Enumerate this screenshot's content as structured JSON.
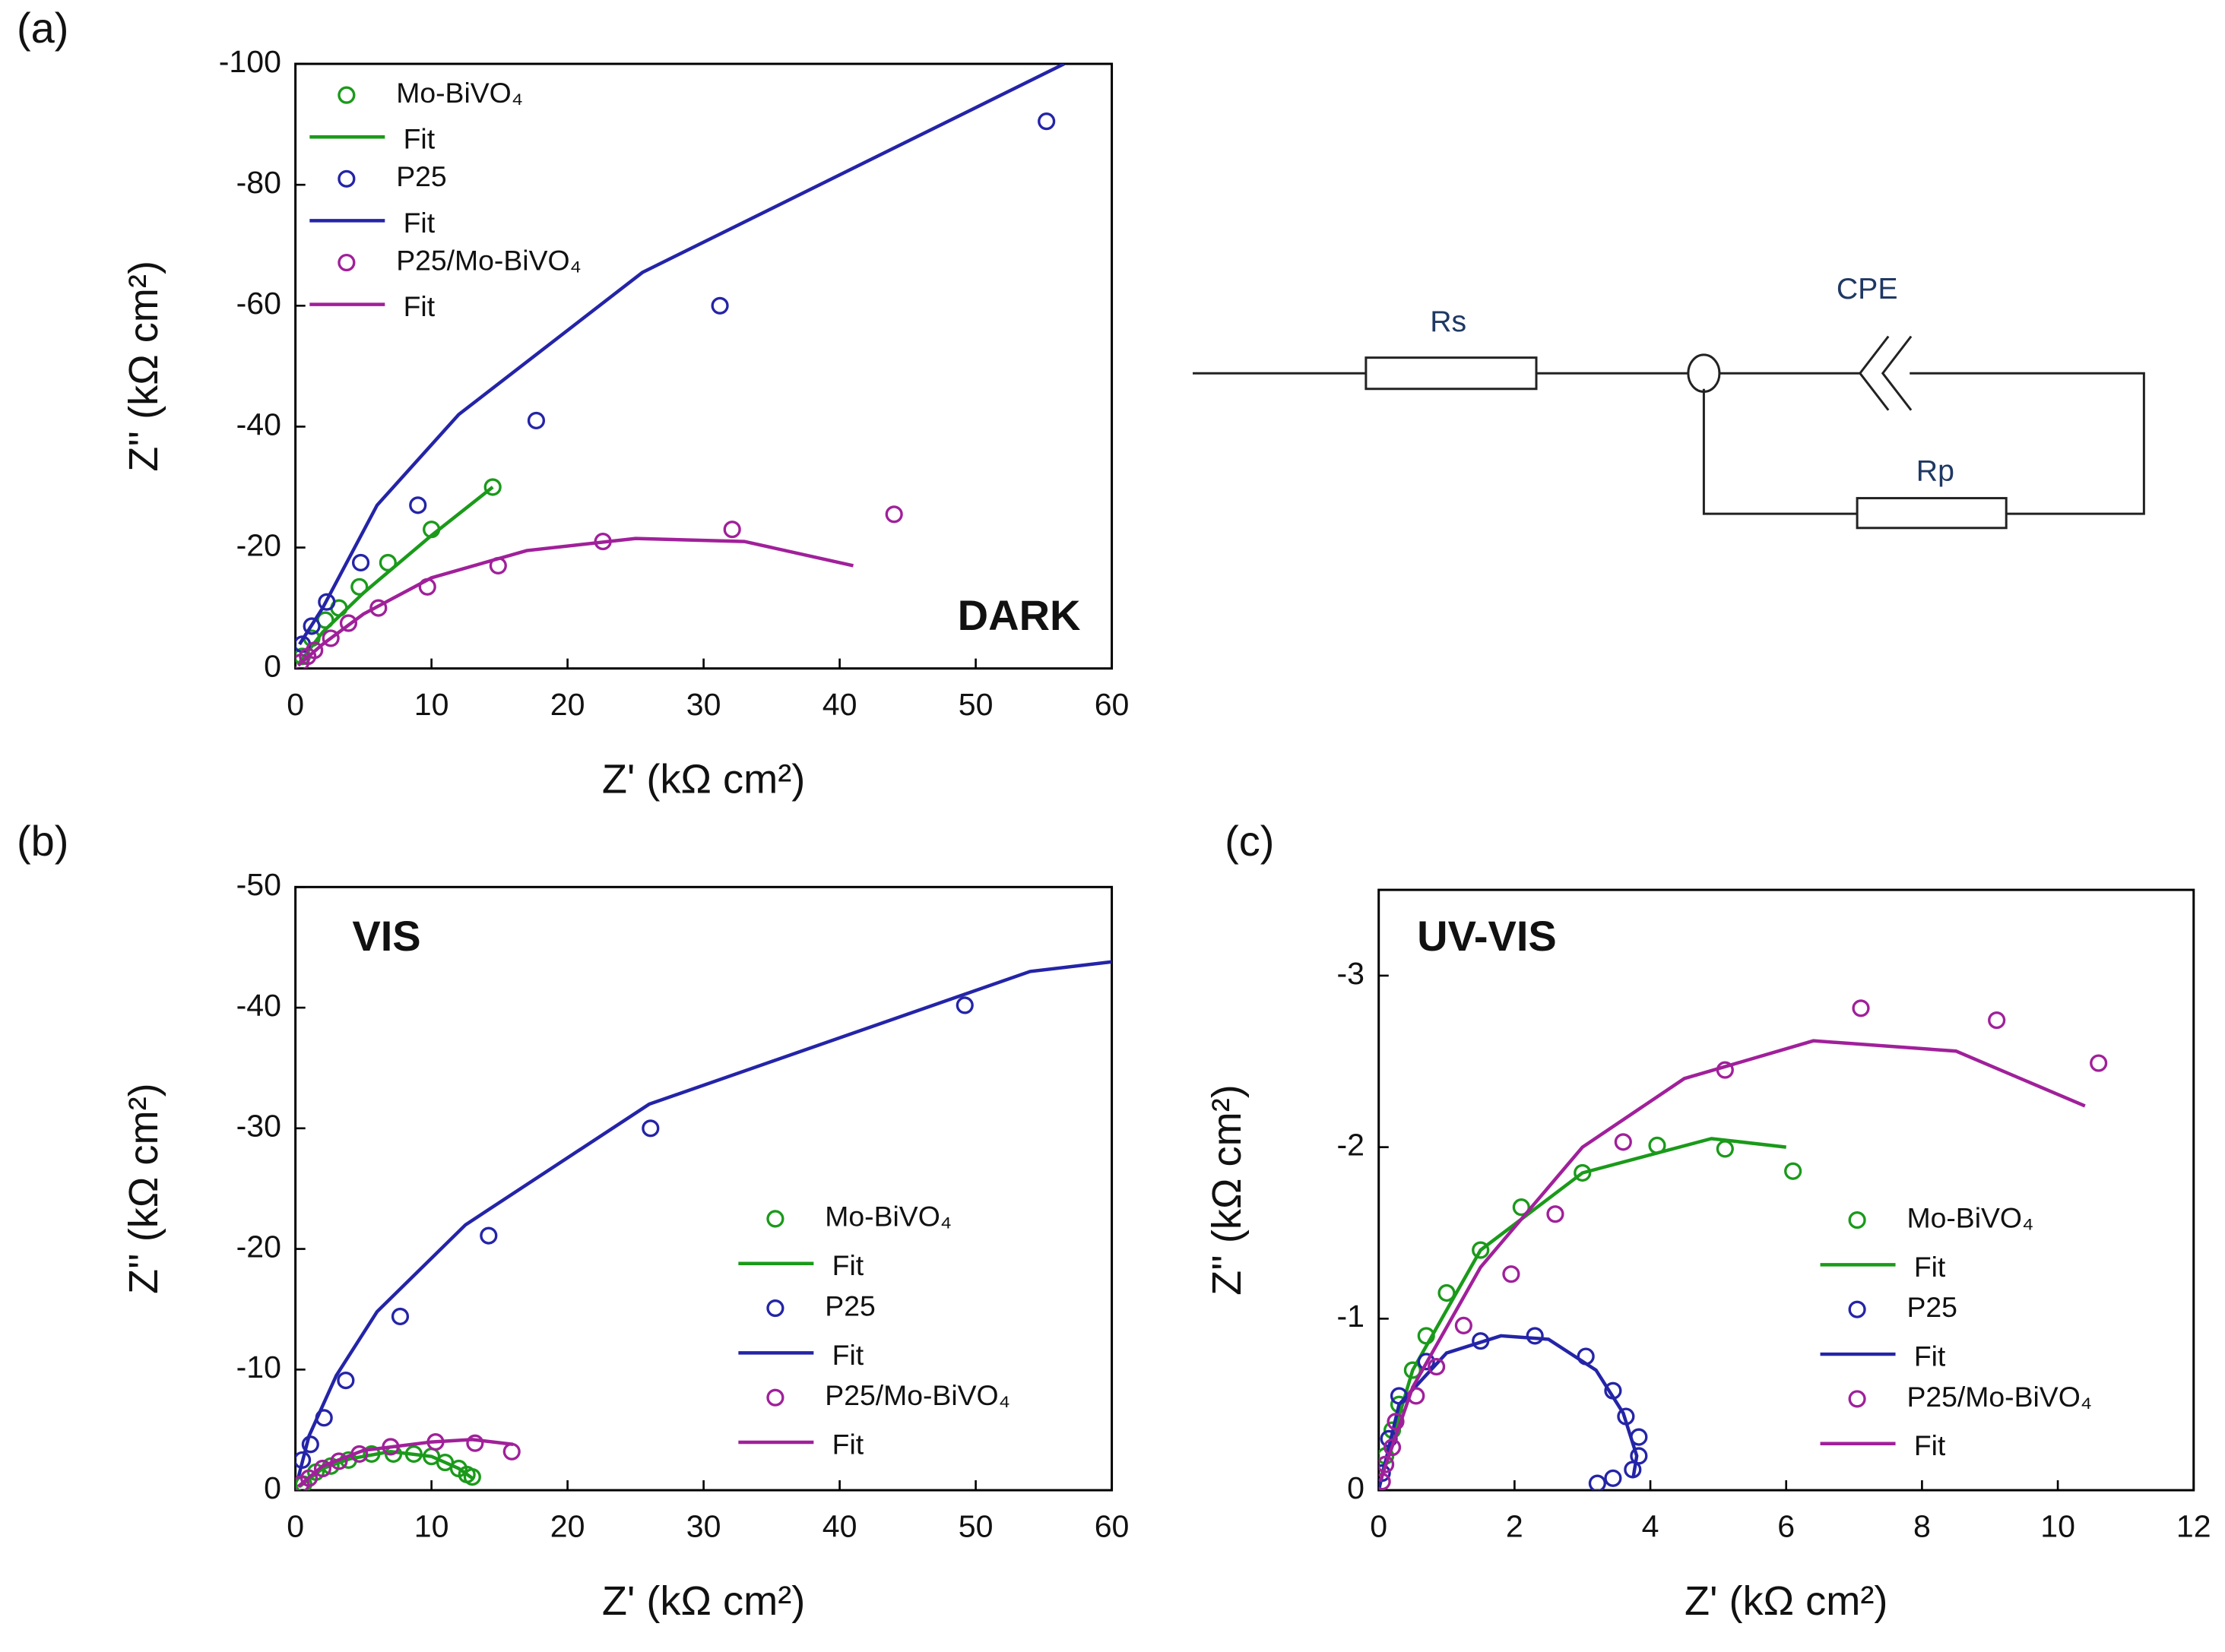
{
  "chart_data": [
    {
      "type": "scatter_line",
      "panel": "(a)",
      "annotation": "DARK",
      "legend": "upper left",
      "x_label": "Z' (kΩ cm²)",
      "y_label": "Z'' (kΩ cm²)",
      "xlim": [
        0,
        60
      ],
      "xticks": [
        0,
        10,
        20,
        30,
        40,
        50,
        60
      ],
      "ylim": [
        0,
        -100
      ],
      "yticks": [
        0,
        -20,
        -40,
        -60,
        -80,
        -100
      ],
      "series": [
        {
          "name": "Mo-BiVO₄",
          "style": "marker",
          "color": "#1a9a1a",
          "x": [
            0.5,
            1.2,
            2.2,
            3.2,
            4.7,
            6.8,
            10,
            14.5
          ],
          "values": [
            -2,
            -5,
            -8,
            -10,
            -13.5,
            -17.5,
            -23,
            -30
          ]
        },
        {
          "name": "Fit",
          "style": "line",
          "color": "#1a9a1a",
          "x": [
            0.3,
            2,
            5,
            10,
            14.5
          ],
          "values": [
            -1,
            -6,
            -12.5,
            -22,
            -30
          ]
        },
        {
          "name": "P25",
          "style": "marker",
          "color": "#2424a8",
          "x": [
            0.5,
            1.2,
            2.3,
            4.8,
            9,
            17.7,
            31.2,
            55.2
          ],
          "values": [
            -4,
            -7,
            -11,
            -17.5,
            -27,
            -41,
            -60,
            -90.5
          ]
        },
        {
          "name": "Fit",
          "style": "line",
          "color": "#2424a8",
          "x": [
            0.3,
            2,
            6,
            12,
            25.5,
            56.5
          ],
          "values": [
            -4,
            -10,
            -27,
            -42,
            -65.5,
            -100
          ]
        },
        {
          "name": "P25/Mo-BiVO₄",
          "style": "marker",
          "color": "#a0209a",
          "x": [
            0.4,
            0.9,
            1.4,
            2.6,
            3.9,
            6.1,
            9.7,
            14.9,
            22.6,
            32.1,
            44
          ],
          "values": [
            -1,
            -2,
            -3,
            -5,
            -7.5,
            -10,
            -13.5,
            -17,
            -21,
            -23,
            -25.5
          ]
        },
        {
          "name": "Fit",
          "style": "line",
          "color": "#a0209a",
          "x": [
            0.2,
            2,
            5,
            10,
            17,
            25,
            33,
            41
          ],
          "values": [
            -0.5,
            -4,
            -9,
            -15,
            -19.5,
            -21.5,
            -21,
            -17
          ]
        }
      ]
    },
    {
      "type": "scatter_line",
      "panel": "(b)",
      "annotation": "VIS",
      "legend": "center right",
      "x_label": "Z' (kΩ cm²)",
      "y_label": "Z'' (kΩ cm²)",
      "xlim": [
        0,
        60
      ],
      "xticks": [
        0,
        10,
        20,
        30,
        40,
        50,
        60
      ],
      "ylim": [
        0,
        -50
      ],
      "yticks": [
        0,
        -10,
        -20,
        -30,
        -40,
        -50
      ],
      "series": [
        {
          "name": "Mo-BiVO₄",
          "style": "marker",
          "color": "#1a9a1a",
          "x": [
            0.6,
            1.5,
            2.6,
            3.9,
            5.6,
            7.2,
            8.7,
            10,
            11,
            12,
            12.6,
            13
          ],
          "values": [
            -0.5,
            -1.5,
            -2,
            -2.5,
            -3,
            -3,
            -3,
            -2.8,
            -2.3,
            -1.8,
            -1.3,
            -1.1
          ]
        },
        {
          "name": "Fit",
          "style": "line",
          "color": "#1a9a1a",
          "x": [
            0.3,
            2,
            4,
            7,
            10,
            12,
            13
          ],
          "values": [
            -0.3,
            -1.8,
            -2.6,
            -3.2,
            -2.8,
            -1.8,
            -1
          ]
        },
        {
          "name": "P25",
          "style": "marker",
          "color": "#2424a8",
          "x": [
            0.5,
            1.1,
            2.1,
            3.7,
            7.7,
            14.2,
            26.1,
            49.2
          ],
          "values": [
            -2.5,
            -3.8,
            -6,
            -9.1,
            -14.4,
            -21.1,
            -30,
            -40.2
          ]
        },
        {
          "name": "Fit",
          "style": "line",
          "color": "#2424a8",
          "x": [
            0.2,
            1,
            3,
            6,
            12.5,
            26,
            54,
            60
          ],
          "values": [
            -1,
            -4.5,
            -9.5,
            -14.8,
            -22,
            -32,
            -43,
            -43.8
          ]
        },
        {
          "name": "P25/Mo-BiVO₄",
          "style": "marker",
          "color": "#a0209a",
          "x": [
            0.4,
            1,
            2,
            3.2,
            4.7,
            7,
            10.3,
            13.2,
            15.9
          ],
          "values": [
            -0.5,
            -1,
            -1.8,
            -2.4,
            -3,
            -3.6,
            -4,
            -3.9,
            -3.2
          ]
        },
        {
          "name": "Fit",
          "style": "line",
          "color": "#a0209a",
          "x": [
            0.2,
            2,
            5,
            10,
            13,
            16
          ],
          "values": [
            -0.3,
            -2,
            -3.3,
            -4,
            -4.2,
            -3.8
          ]
        }
      ]
    },
    {
      "type": "scatter_line",
      "panel": "(c)",
      "annotation": "UV-VIS",
      "legend": "center right",
      "x_label": "Z' (kΩ cm²)",
      "y_label": "Z'' (kΩ cm²)",
      "xlim": [
        0,
        12
      ],
      "xticks": [
        0,
        2,
        4,
        6,
        8,
        10,
        12
      ],
      "ylim": [
        0,
        -3.5
      ],
      "yticks": [
        0,
        -1,
        -2,
        -3
      ],
      "series": [
        {
          "name": "Mo-BiVO₄",
          "style": "marker",
          "color": "#1a9a1a",
          "x": [
            0.1,
            0.2,
            0.3,
            0.5,
            0.7,
            1,
            1.5,
            2.1,
            3,
            4.1,
            5.1,
            6.1
          ],
          "values": [
            -0.2,
            -0.35,
            -0.5,
            -0.7,
            -0.9,
            -1.15,
            -1.4,
            -1.65,
            -1.85,
            -2.01,
            -1.99,
            -1.86
          ]
        },
        {
          "name": "Fit",
          "style": "line",
          "color": "#1a9a1a",
          "x": [
            0.05,
            0.5,
            1.5,
            3,
            4.9,
            6
          ],
          "values": [
            -0.1,
            -0.7,
            -1.4,
            -1.85,
            -2.05,
            -2
          ]
        },
        {
          "name": "P25",
          "style": "marker",
          "color": "#2424a8",
          "x": [
            0.05,
            0.15,
            0.3,
            0.7,
            1.5,
            2.3,
            3.05,
            3.45,
            3.64,
            3.83,
            3.83,
            3.74,
            3.45,
            3.22
          ],
          "values": [
            -0.1,
            -0.3,
            -0.55,
            -0.75,
            -0.87,
            -0.9,
            -0.78,
            -0.58,
            -0.43,
            -0.31,
            -0.2,
            -0.12,
            -0.07,
            -0.04
          ]
        },
        {
          "name": "Fit",
          "style": "line",
          "color": "#2424a8",
          "x": [
            0,
            0.3,
            1,
            1.8,
            2.5,
            3.2,
            3.6,
            3.8,
            3.75
          ],
          "values": [
            0,
            -0.5,
            -0.8,
            -0.9,
            -0.88,
            -0.7,
            -0.45,
            -0.2,
            -0.08
          ]
        },
        {
          "name": "P25/Mo-BiVO₄",
          "style": "marker",
          "color": "#a0209a",
          "x": [
            0.05,
            0.1,
            0.2,
            0.25,
            0.55,
            0.85,
            1.25,
            1.95,
            2.6,
            3.6,
            5.1,
            7.1,
            9.1,
            10.6
          ],
          "values": [
            -0.05,
            -0.15,
            -0.25,
            -0.4,
            -0.55,
            -0.72,
            -0.96,
            -1.26,
            -1.61,
            -2.03,
            -2.45,
            -2.81,
            -2.74,
            -2.49
          ]
        },
        {
          "name": "Fit",
          "style": "line",
          "color": "#a0209a",
          "x": [
            0.02,
            0.5,
            1.5,
            3,
            4.5,
            6.4,
            8.5,
            10.4
          ],
          "values": [
            -0.05,
            -0.6,
            -1.3,
            -2,
            -2.4,
            -2.62,
            -2.56,
            -2.24
          ]
        }
      ]
    }
  ],
  "diagram": {
    "labels": [
      "Rs",
      "CPE",
      "Rp"
    ]
  }
}
